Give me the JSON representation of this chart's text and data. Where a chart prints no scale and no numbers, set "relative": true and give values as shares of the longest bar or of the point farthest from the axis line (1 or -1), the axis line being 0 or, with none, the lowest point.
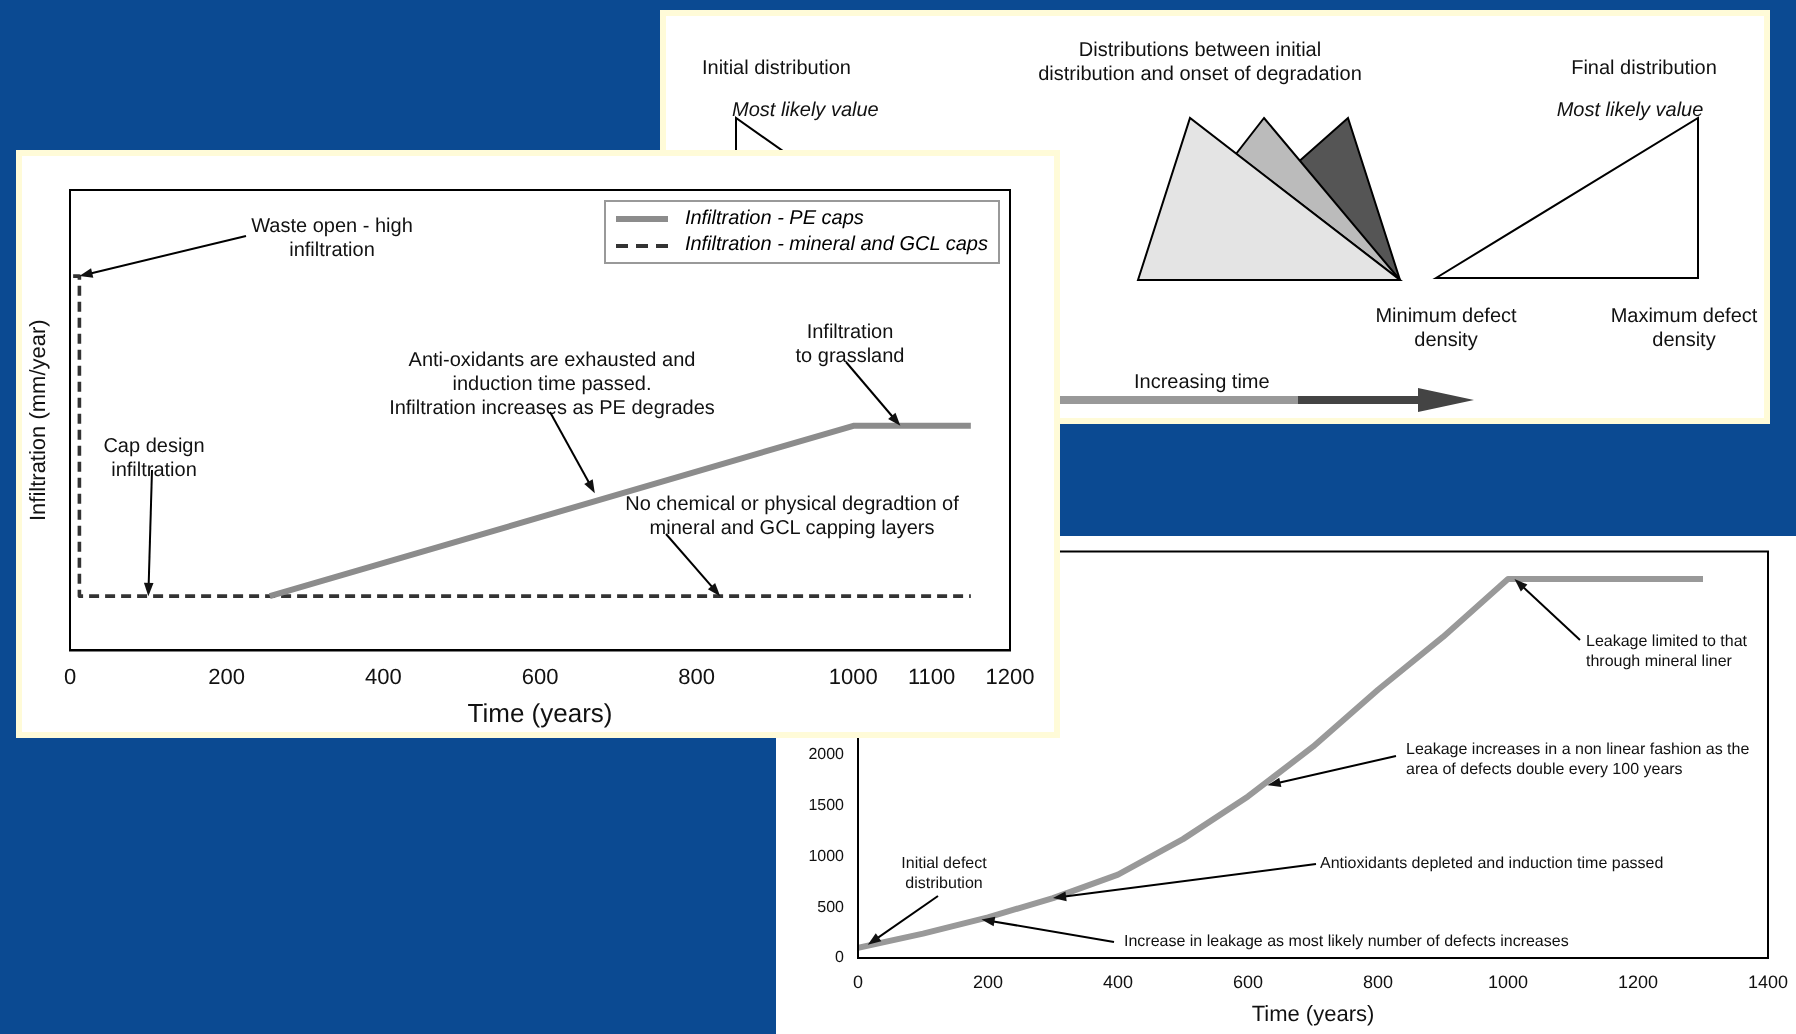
{
  "chart_data": [
    {
      "type": "other",
      "annotations": [
        "Initial distribution",
        "Most likely value",
        "Distributions between initial\ndistribution and onset of degradation",
        "Final distribution",
        "Most likely value",
        "Minimum defect\ndensity",
        "Maximum defect\ndensity",
        "Increasing time"
      ]
    },
    {
      "type": "line",
      "relative": true,
      "xlabel": "Time (years)",
      "ylabel": "Infiltration (mm/year)",
      "xlim": [
        0,
        1200
      ],
      "xticks": [
        0,
        200,
        400,
        600,
        800,
        1000,
        1100,
        1200
      ],
      "tick_labels": "x",
      "legend": "top right",
      "marker": "none",
      "series": [
        {
          "name": "Infiltration - PE caps",
          "color": "#8c8c8c",
          "line_style": "solid",
          "x": [
            255,
            1000,
            1150
          ],
          "values": [
            0.145,
            0.6,
            0.6
          ]
        },
        {
          "name": "Infiltration  - mineral and GCL caps",
          "color": "#333333",
          "line_style": "dashed",
          "x": [
            4,
            12,
            12,
            1150
          ],
          "values": [
            1,
            1,
            0.145,
            0.145
          ]
        }
      ],
      "annotations": [
        {
          "text": "Waste open - high\ninfiltration",
          "x": 12,
          "y": 1
        },
        {
          "text": "Cap design\ninfiltration",
          "x": 100,
          "y": 0.145
        },
        {
          "text": "Anti-oxidants are exhausted and\ninduction time passed.\nInfiltration increases as PE degrades",
          "x": 670,
          "y": 0.42
        },
        {
          "text": "Infiltration\nto grassland",
          "x": 1060,
          "y": 0.6
        },
        {
          "text": "No chemical or physical degradtion of\nmineral and GCL capping layers",
          "x": 830,
          "y": 0.145
        }
      ]
    },
    {
      "type": "line",
      "xlabel": "Time (years)",
      "xlim": [
        0,
        1400
      ],
      "ylim": [
        0,
        4000
      ],
      "xticks": [
        0,
        200,
        400,
        600,
        800,
        1000,
        1200,
        1400
      ],
      "yticks": [
        0,
        500,
        1000,
        1500,
        2000
      ],
      "marker": "none",
      "series": [
        {
          "color": "#999999",
          "x": [
            0,
            100,
            200,
            300,
            400,
            500,
            600,
            700,
            800,
            900,
            1000,
            1300
          ],
          "values": [
            100,
            240,
            400,
            590,
            820,
            1170,
            1590,
            2080,
            2640,
            3160,
            3730,
            3730
          ]
        }
      ],
      "annotations": [
        {
          "text": "Leakage limited to that\nthrough mineral liner",
          "x": 1010,
          "y": 3730
        },
        {
          "text": "Leakage increases in a non linear fashion as the\narea of defects double every 100 years",
          "x": 630,
          "y": 1700
        },
        {
          "text": "Antioxidants depleted and induction time passed",
          "x": 300,
          "y": 590
        },
        {
          "text": "Increase in leakage as most likely number of defects increases",
          "x": 190,
          "y": 380
        },
        {
          "text": "Initial defect\ndistribution",
          "x": 15,
          "y": 130
        }
      ]
    }
  ]
}
